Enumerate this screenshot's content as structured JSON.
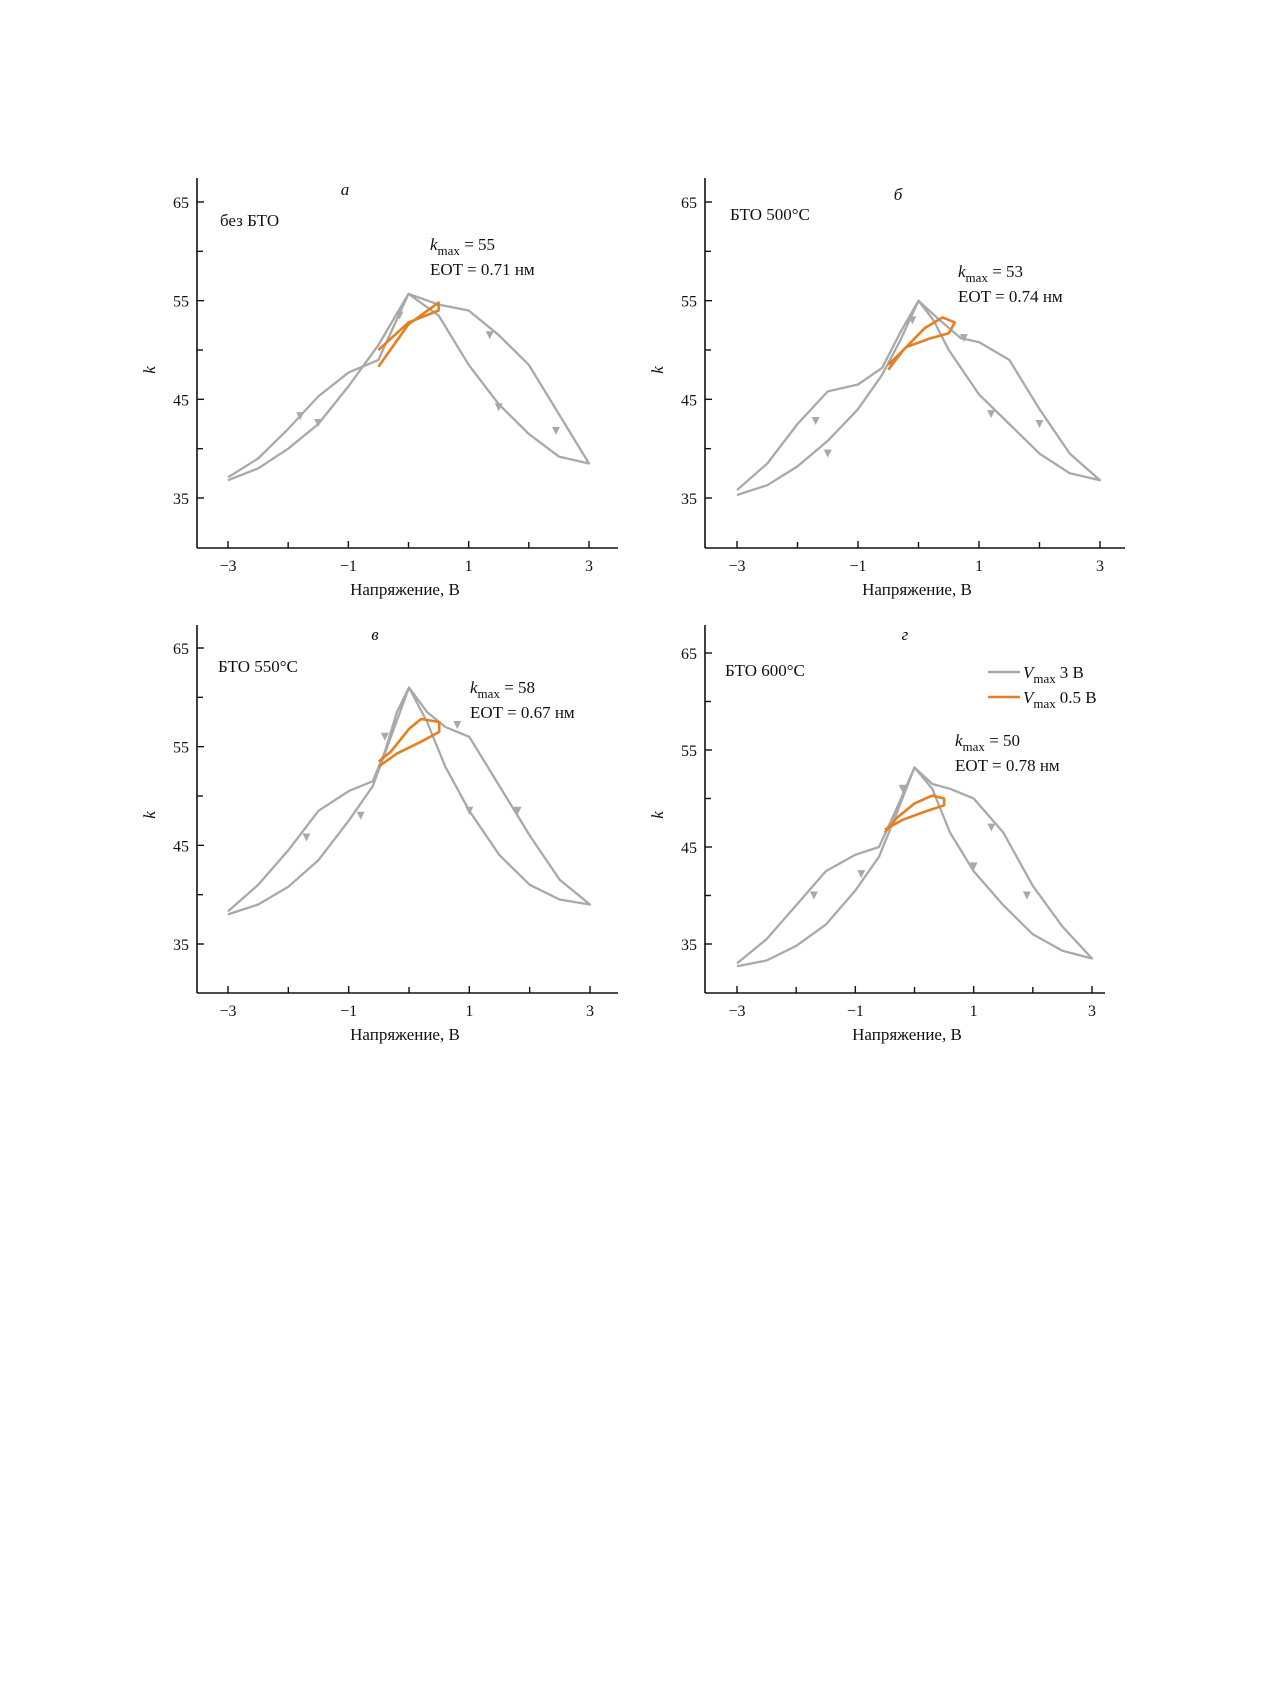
{
  "figure": {
    "shared": {
      "xlabel": "Напряжение, В",
      "ylabel": "k",
      "kmax_base": "k",
      "kmax_sub": "max",
      "eot_prefix": "EOT = ",
      "eot_unit": "нм",
      "colors": {
        "sweep_3V": "#a9a9a9",
        "sweep_05V": "#e67e22",
        "axis": "#111111"
      }
    },
    "legend": {
      "items": [
        {
          "symbol": "V",
          "sub": "max",
          "text": "3 В",
          "color": "#a9a9a9"
        },
        {
          "symbol": "V",
          "sub": "max",
          "text": "0.5 В",
          "color": "#e67e22"
        }
      ]
    }
  },
  "chart_data": [
    {
      "type": "line",
      "panel_letter": "а",
      "sample_label": "без БТО",
      "kmax_value": "55",
      "eot_value": "0.71",
      "xlabel": "Напряжение, В",
      "ylabel": "k",
      "xlim": [
        -3.5,
        3.5
      ],
      "ylim": [
        30,
        67
      ],
      "xticks": [
        "−3",
        "−1",
        "1",
        "3"
      ],
      "xtick_values": [
        -3,
        -1,
        1,
        3
      ],
      "yticks": [
        "35",
        "45",
        "55",
        "65"
      ],
      "ytick_values": [
        35,
        45,
        55,
        65
      ],
      "series": [
        {
          "name": "V_max 3 В",
          "color": "#a9a9a9",
          "points": [
            [
              -3,
              37.1
            ],
            [
              -2.5,
              39.0
            ],
            [
              -2,
              42.0
            ],
            [
              -1.5,
              45.3
            ],
            [
              -1,
              47.7
            ],
            [
              -0.5,
              49.0
            ],
            [
              0,
              55.7
            ],
            [
              0.5,
              54.6
            ],
            [
              1,
              54.0
            ],
            [
              1.5,
              51.5
            ],
            [
              2,
              48.5
            ],
            [
              2.5,
              43.5
            ],
            [
              3,
              38.5
            ],
            [
              2.5,
              39.2
            ],
            [
              2,
              41.5
            ],
            [
              1.5,
              44.5
            ],
            [
              1,
              48.5
            ],
            [
              0.5,
              53.5
            ],
            [
              0,
              55.7
            ],
            [
              -0.5,
              50.5
            ],
            [
              -1,
              46.3
            ],
            [
              -1.5,
              42.5
            ],
            [
              -2,
              40.0
            ],
            [
              -2.5,
              38.0
            ],
            [
              -3,
              36.8
            ]
          ],
          "arrows": [
            [
              -1.8,
              43.3
            ],
            [
              -0.15,
              53.5
            ],
            [
              1.35,
              51.5
            ],
            [
              2.45,
              41.8
            ],
            [
              1.5,
              44.2
            ],
            [
              -1.5,
              42.6
            ]
          ]
        },
        {
          "name": "V_max 0.5 В",
          "color": "#e67e22",
          "points": [
            [
              -0.5,
              50.0
            ],
            [
              0,
              52.8
            ],
            [
              0.5,
              54.0
            ],
            [
              0.5,
              54.8
            ],
            [
              0,
              52.6
            ],
            [
              -0.5,
              48.3
            ]
          ],
          "arrows": []
        }
      ]
    },
    {
      "type": "line",
      "panel_letter": "б",
      "sample_label": "БТО 500°C",
      "kmax_value": "53",
      "eot_value": "0.74",
      "xlabel": "Напряжение, В",
      "ylabel": "k",
      "xlim": [
        -3.5,
        3.5
      ],
      "ylim": [
        30,
        67
      ],
      "xticks": [
        "−3",
        "−1",
        "1",
        "3"
      ],
      "xtick_values": [
        -3,
        -1,
        1,
        3
      ],
      "yticks": [
        "35",
        "45",
        "55",
        "65"
      ],
      "ytick_values": [
        35,
        45,
        55,
        65
      ],
      "series": [
        {
          "name": "V_max 3 В",
          "color": "#a9a9a9",
          "points": [
            [
              -3,
              35.8
            ],
            [
              -2.5,
              38.5
            ],
            [
              -2,
              42.5
            ],
            [
              -1.5,
              45.8
            ],
            [
              -1,
              46.5
            ],
            [
              -0.6,
              48.2
            ],
            [
              -0.3,
              51.8
            ],
            [
              0,
              55.0
            ],
            [
              0.3,
              53.3
            ],
            [
              0.7,
              51.2
            ],
            [
              1,
              50.8
            ],
            [
              1.5,
              49.0
            ],
            [
              2,
              44.0
            ],
            [
              2.5,
              39.5
            ],
            [
              3,
              36.8
            ],
            [
              2.5,
              37.5
            ],
            [
              2,
              39.5
            ],
            [
              1.5,
              42.5
            ],
            [
              1,
              45.5
            ],
            [
              0.5,
              50.0
            ],
            [
              0.25,
              53.0
            ],
            [
              0,
              55.0
            ],
            [
              -0.3,
              51.0
            ],
            [
              -0.6,
              47.5
            ],
            [
              -1,
              44.0
            ],
            [
              -1.5,
              40.8
            ],
            [
              -2,
              38.2
            ],
            [
              -2.5,
              36.3
            ],
            [
              -3,
              35.3
            ]
          ],
          "arrows": [
            [
              -1.7,
              42.8
            ],
            [
              -0.1,
              53.0
            ],
            [
              0.75,
              51.2
            ],
            [
              2.0,
              42.5
            ],
            [
              1.2,
              43.5
            ],
            [
              -1.5,
              39.5
            ]
          ]
        },
        {
          "name": "V_max 0.5 В",
          "color": "#e67e22",
          "points": [
            [
              -0.5,
              48.5
            ],
            [
              -0.2,
              50.3
            ],
            [
              0.2,
              51.2
            ],
            [
              0.5,
              51.7
            ],
            [
              0.6,
              52.8
            ],
            [
              0.4,
              53.3
            ],
            [
              0.1,
              52.2
            ],
            [
              -0.25,
              50.0
            ],
            [
              -0.5,
              48.0
            ]
          ],
          "arrows": []
        }
      ]
    },
    {
      "type": "line",
      "panel_letter": "в",
      "sample_label": "БТО 550°C",
      "kmax_value": "58",
      "eot_value": "0.67",
      "xlabel": "Напряжение, В",
      "ylabel": "k",
      "xlim": [
        -3.5,
        3.5
      ],
      "ylim": [
        30,
        67
      ],
      "xticks": [
        "−3",
        "−1",
        "1",
        "3"
      ],
      "xtick_values": [
        -3,
        -1,
        1,
        3
      ],
      "yticks": [
        "35",
        "45",
        "55",
        "65"
      ],
      "ytick_values": [
        35,
        45,
        55,
        65
      ],
      "series": [
        {
          "name": "V_max 3 В",
          "color": "#a9a9a9",
          "points": [
            [
              -3,
              38.3
            ],
            [
              -2.5,
              41.0
            ],
            [
              -2,
              44.5
            ],
            [
              -1.5,
              48.5
            ],
            [
              -1,
              50.5
            ],
            [
              -0.6,
              51.5
            ],
            [
              -0.4,
              54.5
            ],
            [
              -0.2,
              58.5
            ],
            [
              0,
              61.0
            ],
            [
              0.3,
              58.5
            ],
            [
              0.6,
              57.0
            ],
            [
              1,
              56.0
            ],
            [
              1.5,
              51.0
            ],
            [
              2,
              46.0
            ],
            [
              2.5,
              41.5
            ],
            [
              3,
              39.0
            ],
            [
              2.5,
              39.5
            ],
            [
              2,
              41.0
            ],
            [
              1.5,
              44.0
            ],
            [
              1,
              48.5
            ],
            [
              0.6,
              53.0
            ],
            [
              0.3,
              57.5
            ],
            [
              0,
              61.0
            ],
            [
              -0.3,
              56.0
            ],
            [
              -0.6,
              51.0
            ],
            [
              -1,
              47.5
            ],
            [
              -1.5,
              43.5
            ],
            [
              -2,
              40.8
            ],
            [
              -2.5,
              39.0
            ],
            [
              -3,
              38.0
            ]
          ],
          "arrows": [
            [
              -1.7,
              45.8
            ],
            [
              -0.4,
              56.0
            ],
            [
              0.8,
              57.2
            ],
            [
              1.8,
              48.5
            ],
            [
              1.0,
              48.5
            ],
            [
              -0.8,
              48.0
            ]
          ]
        },
        {
          "name": "V_max 0.5 В",
          "color": "#e67e22",
          "points": [
            [
              -0.5,
              53.0
            ],
            [
              -0.2,
              54.3
            ],
            [
              0.2,
              55.5
            ],
            [
              0.5,
              56.5
            ],
            [
              0.5,
              57.5
            ],
            [
              0.2,
              57.8
            ],
            [
              0.0,
              56.8
            ],
            [
              -0.3,
              54.5
            ],
            [
              -0.5,
              53.5
            ]
          ],
          "arrows": []
        }
      ]
    },
    {
      "type": "line",
      "panel_letter": "г",
      "sample_label": "БТО 600°C",
      "kmax_value": "50",
      "eot_value": "0.78",
      "xlabel": "Напряжение, В",
      "ylabel": "k",
      "xlim": [
        -3.5,
        3.5
      ],
      "ylim": [
        30,
        67
      ],
      "xticks": [
        "−3",
        "−1",
        "1",
        "3"
      ],
      "xtick_values": [
        -3,
        -1,
        1,
        3
      ],
      "yticks": [
        "35",
        "45",
        "55",
        "65"
      ],
      "ytick_values": [
        35,
        45,
        55,
        65
      ],
      "series": [
        {
          "name": "V_max 3 В",
          "color": "#a9a9a9",
          "points": [
            [
              -3,
              33.0
            ],
            [
              -2.5,
              35.5
            ],
            [
              -2,
              39.0
            ],
            [
              -1.5,
              42.5
            ],
            [
              -1,
              44.2
            ],
            [
              -0.6,
              45.0
            ],
            [
              -0.3,
              49.0
            ],
            [
              0,
              53.2
            ],
            [
              0.3,
              51.5
            ],
            [
              0.6,
              51.0
            ],
            [
              1,
              50.0
            ],
            [
              1.5,
              46.5
            ],
            [
              2,
              41.0
            ],
            [
              2.5,
              36.8
            ],
            [
              3,
              33.5
            ],
            [
              2.5,
              34.3
            ],
            [
              2,
              36.0
            ],
            [
              1.5,
              39.0
            ],
            [
              1,
              42.5
            ],
            [
              0.6,
              46.5
            ],
            [
              0.3,
              51.0
            ],
            [
              0,
              53.2
            ],
            [
              -0.3,
              48.5
            ],
            [
              -0.6,
              44.0
            ],
            [
              -1,
              40.5
            ],
            [
              -1.5,
              37.0
            ],
            [
              -2,
              34.8
            ],
            [
              -2.5,
              33.3
            ],
            [
              -3,
              32.7
            ]
          ],
          "arrows": [
            [
              -1.7,
              40.0
            ],
            [
              -0.2,
              51.0
            ],
            [
              1.3,
              47.0
            ],
            [
              1.9,
              40.0
            ],
            [
              1.0,
              43.0
            ],
            [
              -0.9,
              42.2
            ]
          ]
        },
        {
          "name": "V_max 0.5 В",
          "color": "#e67e22",
          "points": [
            [
              -0.5,
              46.8
            ],
            [
              -0.2,
              47.8
            ],
            [
              0.2,
              48.7
            ],
            [
              0.5,
              49.3
            ],
            [
              0.5,
              50.0
            ],
            [
              0.3,
              50.3
            ],
            [
              0.0,
              49.5
            ],
            [
              -0.3,
              48.0
            ],
            [
              -0.5,
              46.5
            ]
          ],
          "arrows": []
        }
      ]
    }
  ]
}
